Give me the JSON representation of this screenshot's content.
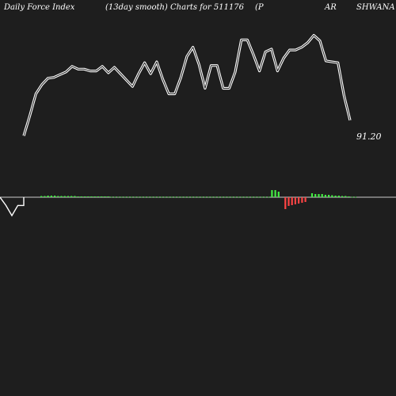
{
  "header": {
    "t1": "Daily Force  Index",
    "t2": "(13day smooth) Charts for 511176",
    "t3": "(P",
    "t4": "AR",
    "t5": "SHWANA"
  },
  "chart_data": {
    "type": "line",
    "title": "Daily Force Index (13day smooth) Charts for 511176",
    "last_value_label": "91.20",
    "colors": {
      "background": "#1e1e1e",
      "line": "#ffffff",
      "positive": "#44ee44",
      "negative": "#ff4444",
      "zero_line": "#cccccc"
    },
    "upper_series": [
      16,
      38,
      62,
      72,
      79,
      80,
      83,
      86,
      92,
      89,
      89,
      87,
      87,
      92,
      85,
      91,
      84,
      77,
      70,
      84,
      96,
      84,
      97,
      78,
      62,
      62,
      80,
      103,
      113,
      94,
      68,
      93,
      93,
      68,
      68,
      86,
      121,
      121,
      105,
      87,
      108,
      111,
      87,
      101,
      110,
      110,
      113,
      118,
      126,
      120,
      98,
      97,
      96,
      60,
      33
    ],
    "upper_ylim": [
      0,
      130
    ],
    "lower_series": [
      0,
      -13,
      -29,
      -13,
      -13,
      1.5,
      1.5,
      2,
      2,
      2,
      1.5,
      1.5,
      1.5,
      1.5,
      1.5,
      1.5,
      1,
      1,
      1,
      1,
      1,
      1,
      1,
      1,
      1,
      1,
      0.5,
      0.5,
      0.5,
      0.5,
      0.5,
      0.5,
      0.5,
      0.5,
      0.5,
      0.5,
      0.5,
      0.5,
      0.5,
      0.5,
      0.5,
      0.5,
      0.5,
      0.5,
      0.5,
      0.5,
      0.5,
      0.5,
      0.5,
      0.5,
      0.5,
      0.5,
      0.5,
      0.5,
      0.5,
      0.5,
      0.5,
      0.5,
      0.5,
      0.5,
      0.5,
      0.5,
      0.5,
      0.5,
      0.5,
      0.5,
      0.5,
      0.5,
      0.5,
      0.5,
      0.5,
      0.5,
      0.5,
      0.5,
      9,
      9,
      7,
      0,
      -15,
      -11,
      -10,
      -9,
      -8,
      -7,
      -6,
      0,
      5,
      4,
      4,
      4,
      3,
      3,
      2.5,
      2,
      2,
      1.5,
      1.5,
      1,
      0.5,
      0.5
    ],
    "lower_bar_colors": [
      "w",
      "w",
      "w",
      "w",
      "w",
      "g",
      "g",
      "g",
      "g",
      "g",
      "g",
      "g",
      "g",
      "g",
      "g",
      "g",
      "g",
      "g",
      "g",
      "g",
      "g",
      "g",
      "g",
      "g",
      "g",
      "g",
      "g",
      "g",
      "g",
      "g",
      "g",
      "g",
      "g",
      "g",
      "g",
      "g",
      "g",
      "g",
      "g",
      "g",
      "g",
      "g",
      "g",
      "g",
      "g",
      "g",
      "g",
      "g",
      "g",
      "g",
      "g",
      "g",
      "g",
      "g",
      "g",
      "g",
      "g",
      "g",
      "g",
      "g",
      "g",
      "g",
      "g",
      "g",
      "g",
      "g",
      "g",
      "g",
      "g",
      "g",
      "g",
      "g",
      "g",
      "g",
      "g",
      "g",
      "g",
      "w",
      "r",
      "r",
      "r",
      "r",
      "r",
      "r",
      "r",
      "w",
      "g",
      "g",
      "g",
      "g",
      "g",
      "g",
      "g",
      "g",
      "g",
      "g",
      "g",
      "g",
      "g",
      "g"
    ],
    "lower_ylim": [
      -40,
      40
    ]
  }
}
